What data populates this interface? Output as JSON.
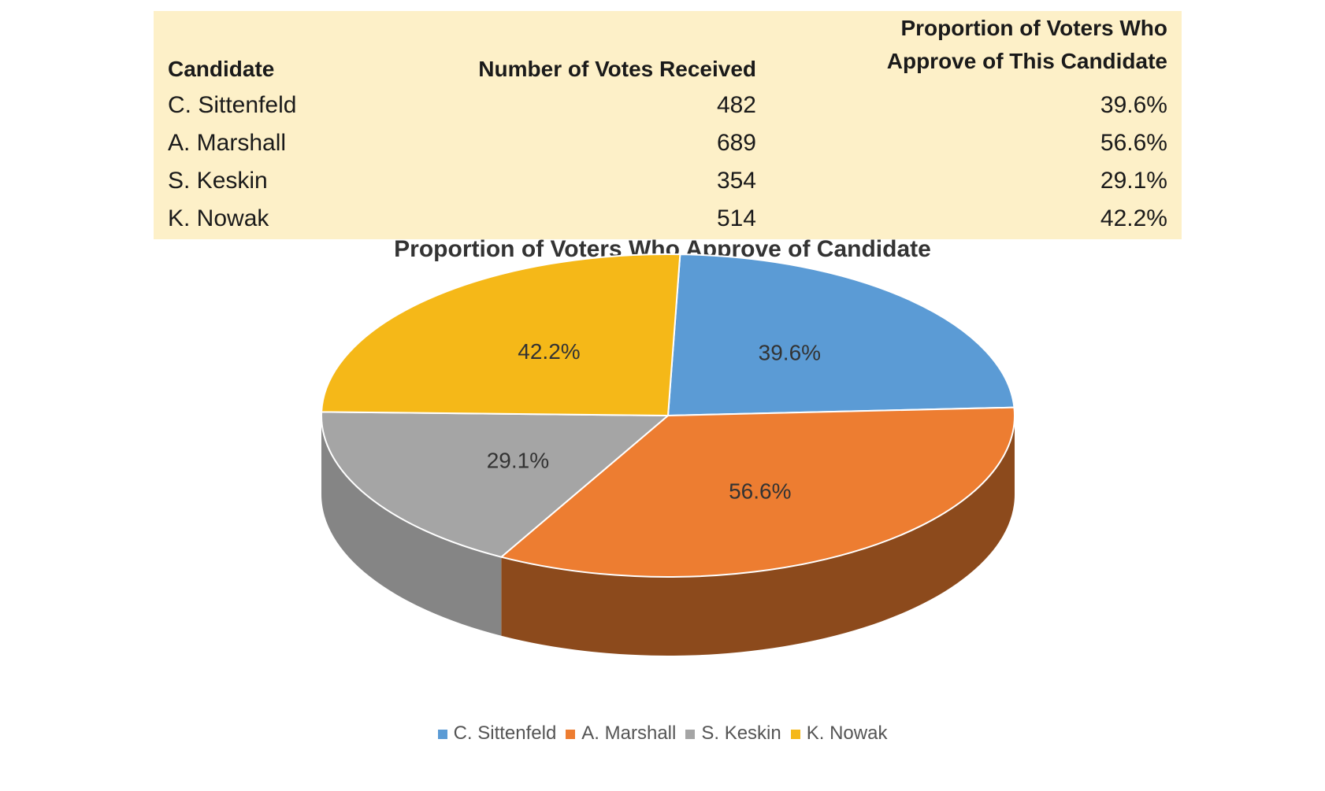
{
  "table": {
    "headers": {
      "candidate": "Candidate",
      "votes": "Number of Votes Received",
      "approval_line1": "Proportion of Voters Who",
      "approval_line2": "Approve of This Candidate"
    },
    "rows": [
      {
        "candidate": "C. Sittenfeld",
        "votes": "482",
        "approval": "39.6%"
      },
      {
        "candidate": "A. Marshall",
        "votes": "689",
        "approval": "56.6%"
      },
      {
        "candidate": "S. Keskin",
        "votes": "354",
        "approval": "29.1%"
      },
      {
        "candidate": "K. Nowak",
        "votes": "514",
        "approval": "42.2%"
      }
    ]
  },
  "chart_data": {
    "type": "pie",
    "title": "Proportion of Voters Who Approve of Candidate",
    "legend_position": "bottom",
    "slices": [
      {
        "label": "C. Sittenfeld",
        "value": 39.6,
        "value_label": "39.6%",
        "color": "#5b9bd5",
        "side_color": "#3f74a8"
      },
      {
        "label": "A. Marshall",
        "value": 56.6,
        "value_label": "56.6%",
        "color": "#ed7d31",
        "side_color": "#8c4a1c"
      },
      {
        "label": "S. Keskin",
        "value": 29.1,
        "value_label": "29.1%",
        "color": "#a5a5a5",
        "side_color": "#858585"
      },
      {
        "label": "K. Nowak",
        "value": 42.2,
        "value_label": "42.2%",
        "color": "#f5b818",
        "side_color": "#b88a10"
      }
    ]
  }
}
